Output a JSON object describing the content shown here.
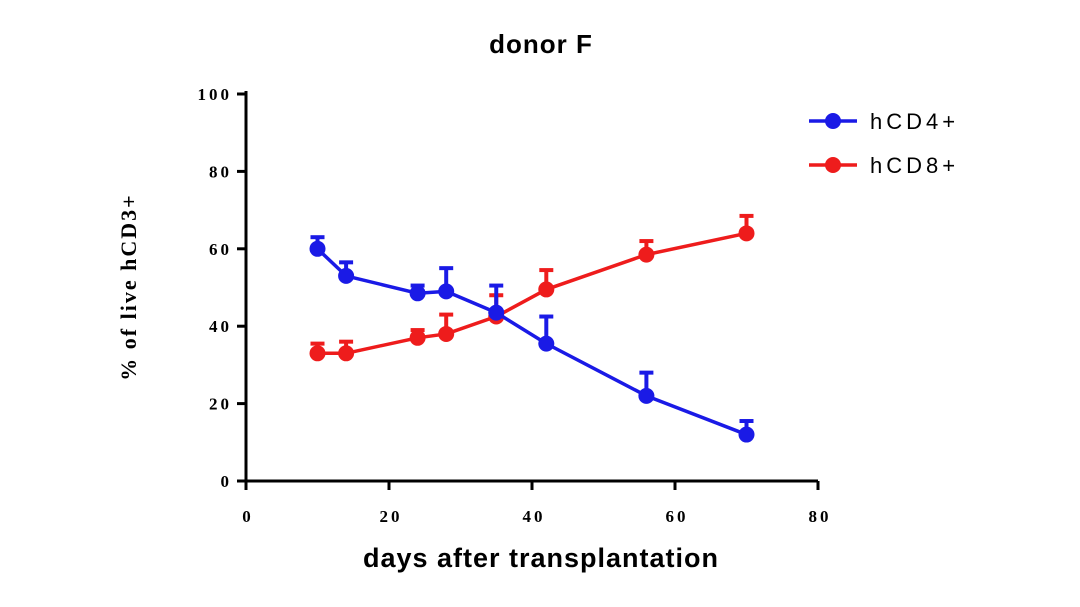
{
  "chart_data": {
    "type": "line",
    "title": "donor F",
    "xlabel": "days after transplantation",
    "ylabel": "% of live hCD3+",
    "xlim": [
      0,
      80
    ],
    "ylim": [
      0,
      100
    ],
    "xticks": [
      0,
      20,
      40,
      60,
      80
    ],
    "yticks": [
      0,
      20,
      40,
      60,
      80,
      100
    ],
    "xtick_labels": [
      "0",
      "20",
      "40",
      "60",
      "80"
    ],
    "ytick_labels": [
      "0",
      "20",
      "40",
      "60",
      "80",
      "100"
    ],
    "legend_position": "top-right",
    "grid": false,
    "error_bars": "upper only",
    "series": [
      {
        "name": "hCD4+",
        "color": "#1a1ae6",
        "x": [
          10,
          14,
          24,
          28,
          35,
          42,
          56,
          70
        ],
        "y": [
          60,
          53,
          48.5,
          49,
          43.5,
          35.5,
          22,
          12
        ],
        "err": [
          3,
          3.5,
          2,
          6,
          7,
          7,
          6,
          3.5
        ]
      },
      {
        "name": "hCD8+",
        "color": "#ee1c1c",
        "x": [
          10,
          14,
          24,
          28,
          35,
          42,
          56,
          70
        ],
        "y": [
          33,
          33,
          37,
          38,
          42.5,
          49.5,
          58.5,
          64
        ],
        "err": [
          2.5,
          3,
          2,
          5,
          5.5,
          5,
          3.5,
          4.5
        ]
      }
    ]
  }
}
